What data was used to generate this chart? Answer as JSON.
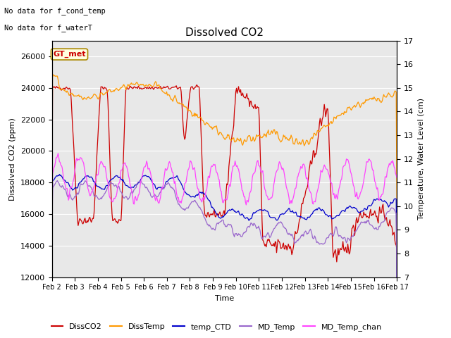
{
  "title": "Dissolved CO2",
  "xlabel": "Time",
  "ylabel_left": "Dissolved CO2 (ppm)",
  "ylabel_right": "Temperature, Water Level (cm)",
  "note1": "No data for f_cond_temp",
  "note2": "No data for f_waterT",
  "gt_met_label": "GT_met",
  "ylim_left": [
    12000,
    27000
  ],
  "ylim_right": [
    7.0,
    17.0
  ],
  "background_color": "#ffffff",
  "plot_bg_color": "#e8e8e8",
  "legend_entries": [
    "DissCO2",
    "DissTemp",
    "temp_CTD",
    "MD_Temp",
    "MD_Temp_chan"
  ],
  "legend_colors": [
    "#cc0000",
    "#ff9900",
    "#0000cc",
    "#9966cc",
    "#ff44ff"
  ],
  "date_start": 2,
  "date_end": 17,
  "num_points": 500
}
